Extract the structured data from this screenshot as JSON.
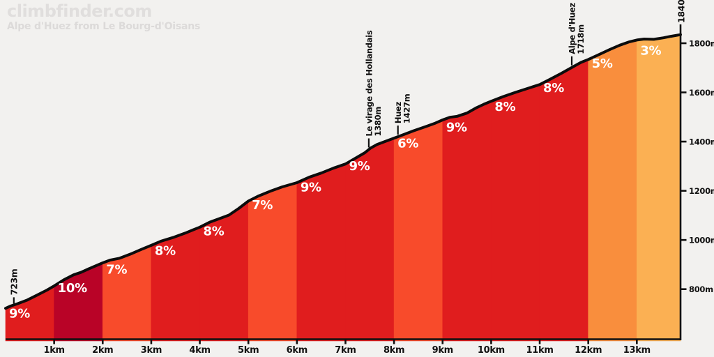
{
  "header": {
    "brand": "climbfinder.com",
    "subtitle": "Alpe d'Huez from Le Bourg-d'Oisans"
  },
  "palette": {
    "background": "#f2f1ef",
    "profile_line": "#0c0c0c",
    "axis": "#111111",
    "gradient_text": "#ffffff",
    "annotation_text": "#111111",
    "grad_10pct": "#b90327",
    "grad_8_9pct": "#e01d1e",
    "grad_6_7pct": "#f84b2b",
    "grad_5pct": "#f98e3d",
    "grad_3pct": "#fbb053"
  },
  "chart_data": {
    "type": "area",
    "title": "Alpe d'Huez from Le Bourg-d'Oisans",
    "x_unit": "km",
    "y_unit": "m",
    "xlim": [
      0,
      13.9
    ],
    "ylim": [
      595,
      1840
    ],
    "y_axis_range": [
      595,
      1800
    ],
    "grid": false,
    "legend": false,
    "x_ticks": [
      {
        "value": 1,
        "label": "1km"
      },
      {
        "value": 2,
        "label": "2km"
      },
      {
        "value": 3,
        "label": "3km"
      },
      {
        "value": 4,
        "label": "4km"
      },
      {
        "value": 5,
        "label": "5km"
      },
      {
        "value": 6,
        "label": "6km"
      },
      {
        "value": 7,
        "label": "7km"
      },
      {
        "value": 8,
        "label": "8km"
      },
      {
        "value": 9,
        "label": "9km"
      },
      {
        "value": 10,
        "label": "10km"
      },
      {
        "value": 11,
        "label": "11km"
      },
      {
        "value": 12,
        "label": "12km"
      },
      {
        "value": 13,
        "label": "13km"
      }
    ],
    "y_ticks": [
      {
        "value": 800,
        "label": "800m"
      },
      {
        "value": 1000,
        "label": "1000m"
      },
      {
        "value": 1200,
        "label": "1200m"
      },
      {
        "value": 1400,
        "label": "1400m"
      },
      {
        "value": 1600,
        "label": "1600m"
      },
      {
        "value": 1800,
        "label": "1800m"
      }
    ],
    "segments": [
      {
        "from": 0,
        "to": 1,
        "gradient": "9%",
        "color": "#e01d1e"
      },
      {
        "from": 1,
        "to": 2,
        "gradient": "10%",
        "color": "#b90327"
      },
      {
        "from": 2,
        "to": 3,
        "gradient": "7%",
        "color": "#f84b2b"
      },
      {
        "from": 3,
        "to": 4,
        "gradient": "8%",
        "color": "#e01d1e"
      },
      {
        "from": 4,
        "to": 5,
        "gradient": "8%",
        "color": "#e01d1e"
      },
      {
        "from": 5,
        "to": 6,
        "gradient": "7%",
        "color": "#f84b2b"
      },
      {
        "from": 6,
        "to": 7,
        "gradient": "9%",
        "color": "#e01d1e"
      },
      {
        "from": 7,
        "to": 8,
        "gradient": "9%",
        "color": "#e01d1e"
      },
      {
        "from": 8,
        "to": 9,
        "gradient": "6%",
        "color": "#f84b2b"
      },
      {
        "from": 9,
        "to": 10,
        "gradient": "9%",
        "color": "#e01d1e"
      },
      {
        "from": 10,
        "to": 11,
        "gradient": "8%",
        "color": "#e01d1e"
      },
      {
        "from": 11,
        "to": 12,
        "gradient": "8%",
        "color": "#e01d1e"
      },
      {
        "from": 12,
        "to": 13,
        "gradient": "5%",
        "color": "#f98e3d"
      },
      {
        "from": 13,
        "to": 13.9,
        "gradient": "3%",
        "color": "#fbb053"
      }
    ],
    "profile": [
      [
        0,
        722
      ],
      [
        0.1,
        731
      ],
      [
        0.25,
        741
      ],
      [
        0.45,
        756
      ],
      [
        0.65,
        776
      ],
      [
        0.85,
        796
      ],
      [
        1,
        813
      ],
      [
        1.2,
        838
      ],
      [
        1.4,
        858
      ],
      [
        1.55,
        868
      ],
      [
        1.75,
        886
      ],
      [
        2,
        907
      ],
      [
        2.15,
        918
      ],
      [
        2.35,
        926
      ],
      [
        2.6,
        945
      ],
      [
        2.8,
        962
      ],
      [
        3,
        978
      ],
      [
        3.2,
        995
      ],
      [
        3.45,
        1010
      ],
      [
        3.7,
        1028
      ],
      [
        3.85,
        1040
      ],
      [
        4,
        1052
      ],
      [
        4.2,
        1072
      ],
      [
        4.45,
        1090
      ],
      [
        4.6,
        1101
      ],
      [
        4.8,
        1128
      ],
      [
        5,
        1158
      ],
      [
        5.2,
        1178
      ],
      [
        5.45,
        1198
      ],
      [
        5.7,
        1216
      ],
      [
        6,
        1233
      ],
      [
        6.25,
        1255
      ],
      [
        6.5,
        1272
      ],
      [
        6.75,
        1292
      ],
      [
        7,
        1309
      ],
      [
        7.2,
        1332
      ],
      [
        7.4,
        1355
      ],
      [
        7.52,
        1374
      ],
      [
        7.65,
        1388
      ],
      [
        7.85,
        1403
      ],
      [
        8,
        1414
      ],
      [
        8.15,
        1425
      ],
      [
        8.4,
        1444
      ],
      [
        8.65,
        1461
      ],
      [
        8.85,
        1475
      ],
      [
        9,
        1488
      ],
      [
        9.15,
        1499
      ],
      [
        9.3,
        1503
      ],
      [
        9.5,
        1516
      ],
      [
        9.7,
        1538
      ],
      [
        9.85,
        1552
      ],
      [
        10,
        1564
      ],
      [
        10.25,
        1583
      ],
      [
        10.5,
        1600
      ],
      [
        10.75,
        1616
      ],
      [
        11,
        1632
      ],
      [
        11.2,
        1652
      ],
      [
        11.45,
        1678
      ],
      [
        11.7,
        1706
      ],
      [
        11.85,
        1722
      ],
      [
        12,
        1734
      ],
      [
        12.2,
        1752
      ],
      [
        12.45,
        1775
      ],
      [
        12.65,
        1792
      ],
      [
        12.85,
        1806
      ],
      [
        13,
        1813
      ],
      [
        13.15,
        1817
      ],
      [
        13.35,
        1816
      ],
      [
        13.55,
        1822
      ],
      [
        13.7,
        1828
      ],
      [
        13.9,
        1835
      ]
    ],
    "start_label": {
      "text": "723m",
      "km": 0.17
    },
    "summit_label": {
      "text": "1840m",
      "km": 13.9
    },
    "annotations": [
      {
        "name": "Le virage des Hollandais",
        "elevation": "1380m",
        "km": 7.48
      },
      {
        "name": "Huez",
        "elevation": "1427m",
        "km": 8.08
      },
      {
        "name": "Alpe d'Huez",
        "elevation": "1718m",
        "km": 11.66
      }
    ]
  }
}
